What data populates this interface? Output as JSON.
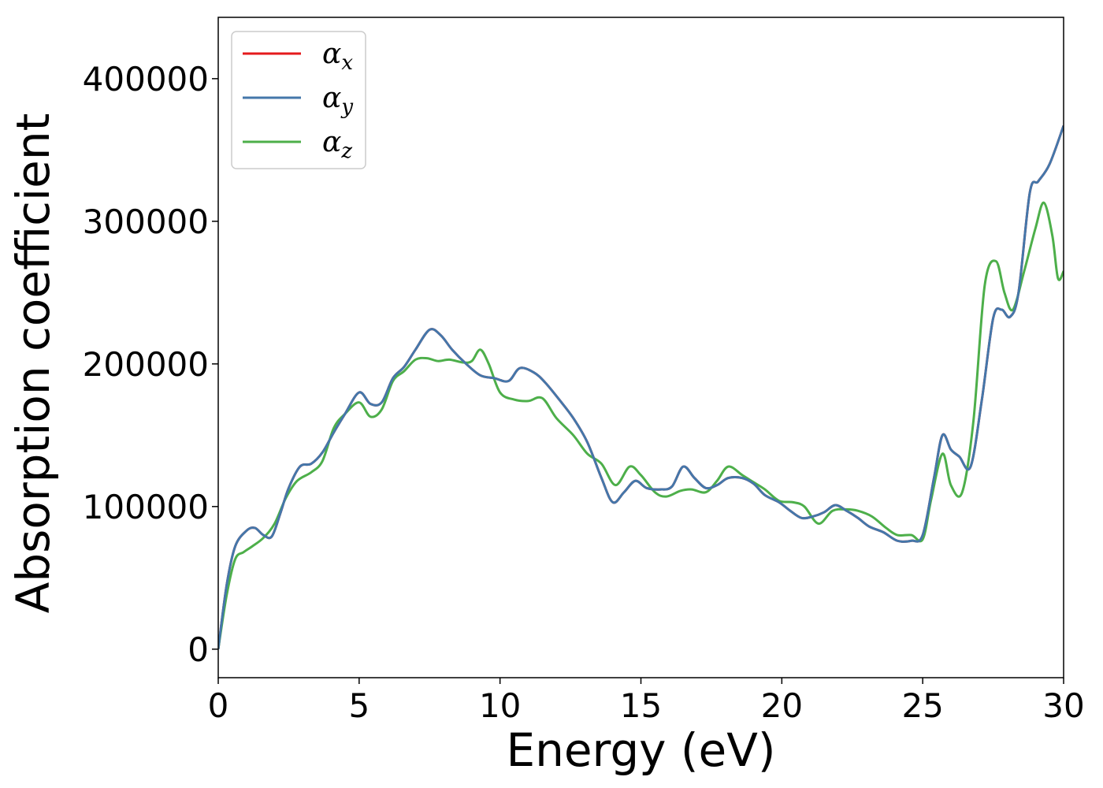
{
  "chart_data": {
    "type": "line",
    "title": "",
    "xlabel": "Energy (eV)",
    "ylabel": "Absorption coefficient",
    "xlim": [
      0,
      30
    ],
    "ylim": [
      -20000,
      443000
    ],
    "xticks": [
      0,
      5,
      10,
      15,
      20,
      25,
      30
    ],
    "yticks": [
      0,
      100000,
      200000,
      300000,
      400000
    ],
    "xtick_labels": [
      "0",
      "5",
      "10",
      "15",
      "20",
      "25",
      "30"
    ],
    "ytick_labels": [
      "0",
      "100000",
      "200000",
      "300000",
      "400000"
    ],
    "grid": false,
    "legend_position": "upper-left",
    "series": [
      {
        "name": "α",
        "subscript": "x",
        "color": "#e41a1c",
        "x": [
          0,
          0.3,
          0.6,
          1.0,
          1.3,
          1.6,
          1.9,
          2.2,
          2.5,
          2.9,
          3.3,
          3.7,
          4.1,
          4.5,
          5.0,
          5.4,
          5.8,
          6.2,
          6.6,
          7.0,
          7.5,
          7.9,
          8.3,
          8.8,
          9.3,
          9.8,
          10.3,
          10.7,
          11.2,
          11.6,
          12.1,
          12.6,
          13.1,
          13.6,
          14.0,
          14.4,
          14.8,
          15.2,
          15.7,
          16.1,
          16.5,
          16.9,
          17.3,
          17.7,
          18.1,
          18.6,
          19.0,
          19.4,
          19.9,
          20.3,
          20.7,
          21.1,
          21.5,
          21.9,
          22.3,
          22.7,
          23.1,
          23.6,
          24.1,
          24.6,
          25.0,
          25.4,
          25.7,
          26.0,
          26.3,
          26.7,
          27.1,
          27.5,
          27.8,
          28.1,
          28.4,
          28.8,
          29.1,
          29.5,
          30.0
        ],
        "values": [
          0,
          45000,
          72000,
          83000,
          85000,
          80000,
          79000,
          95000,
          113000,
          128000,
          130000,
          138000,
          152000,
          165000,
          180000,
          172000,
          173000,
          190000,
          198000,
          210000,
          224000,
          220000,
          210000,
          200000,
          192000,
          190000,
          188000,
          197000,
          194000,
          187000,
          175000,
          162000,
          145000,
          120000,
          103000,
          110000,
          118000,
          113000,
          112000,
          114000,
          128000,
          120000,
          113000,
          115000,
          120000,
          120000,
          116000,
          108000,
          103000,
          97000,
          92000,
          93000,
          96000,
          101000,
          97000,
          92000,
          86000,
          82000,
          76000,
          76000,
          80000,
          120000,
          150000,
          140000,
          135000,
          128000,
          175000,
          232000,
          238000,
          233000,
          250000,
          320000,
          328000,
          340000,
          367000
        ]
      },
      {
        "name": "α",
        "subscript": "y",
        "color": "#4477aa",
        "x": [
          0,
          0.3,
          0.6,
          1.0,
          1.3,
          1.6,
          1.9,
          2.2,
          2.5,
          2.9,
          3.3,
          3.7,
          4.1,
          4.5,
          5.0,
          5.4,
          5.8,
          6.2,
          6.6,
          7.0,
          7.5,
          7.9,
          8.3,
          8.8,
          9.3,
          9.8,
          10.3,
          10.7,
          11.2,
          11.6,
          12.1,
          12.6,
          13.1,
          13.6,
          14.0,
          14.4,
          14.8,
          15.2,
          15.7,
          16.1,
          16.5,
          16.9,
          17.3,
          17.7,
          18.1,
          18.6,
          19.0,
          19.4,
          19.9,
          20.3,
          20.7,
          21.1,
          21.5,
          21.9,
          22.3,
          22.7,
          23.1,
          23.6,
          24.1,
          24.6,
          25.0,
          25.4,
          25.7,
          26.0,
          26.3,
          26.7,
          27.1,
          27.5,
          27.8,
          28.1,
          28.4,
          28.8,
          29.1,
          29.5,
          30.0
        ],
        "values": [
          0,
          45000,
          72000,
          83000,
          85000,
          80000,
          79000,
          95000,
          113000,
          128000,
          130000,
          138000,
          152000,
          165000,
          180000,
          172000,
          173000,
          190000,
          198000,
          210000,
          224000,
          220000,
          210000,
          200000,
          192000,
          190000,
          188000,
          197000,
          194000,
          187000,
          175000,
          162000,
          145000,
          120000,
          103000,
          110000,
          118000,
          113000,
          112000,
          114000,
          128000,
          120000,
          113000,
          115000,
          120000,
          120000,
          116000,
          108000,
          103000,
          97000,
          92000,
          93000,
          96000,
          101000,
          97000,
          92000,
          86000,
          82000,
          76000,
          76000,
          80000,
          120000,
          150000,
          140000,
          135000,
          128000,
          175000,
          232000,
          238000,
          233000,
          250000,
          320000,
          328000,
          340000,
          367000
        ]
      },
      {
        "name": "α",
        "subscript": "z",
        "color": "#4daf4a",
        "x": [
          0,
          0.3,
          0.6,
          0.9,
          1.2,
          1.6,
          2.0,
          2.4,
          2.8,
          3.3,
          3.7,
          4.1,
          4.5,
          5.0,
          5.4,
          5.8,
          6.2,
          6.6,
          7.0,
          7.4,
          7.8,
          8.2,
          8.7,
          9.0,
          9.3,
          9.6,
          10.0,
          10.5,
          11.0,
          11.5,
          12.0,
          12.6,
          13.1,
          13.6,
          14.1,
          14.6,
          15.0,
          15.5,
          15.9,
          16.4,
          16.8,
          17.3,
          17.7,
          18.1,
          18.6,
          19.0,
          19.4,
          19.9,
          20.4,
          20.8,
          21.3,
          21.8,
          22.3,
          22.7,
          23.2,
          23.7,
          24.1,
          24.6,
          25.0,
          25.3,
          25.7,
          26.0,
          26.4,
          26.8,
          27.2,
          27.6,
          27.9,
          28.2,
          28.6,
          29.0,
          29.3,
          29.6,
          29.8,
          30.0
        ],
        "values": [
          0,
          38000,
          63000,
          68000,
          72000,
          78000,
          88000,
          106000,
          118000,
          124000,
          132000,
          155000,
          165000,
          173000,
          163000,
          168000,
          188000,
          195000,
          203000,
          204000,
          202000,
          203000,
          201000,
          202000,
          210000,
          200000,
          180000,
          175000,
          174000,
          176000,
          162000,
          150000,
          137000,
          130000,
          115000,
          128000,
          122000,
          110000,
          107000,
          111000,
          112000,
          110000,
          118000,
          128000,
          122000,
          117000,
          112000,
          104000,
          103000,
          100000,
          88000,
          97000,
          98000,
          97000,
          93000,
          85000,
          80000,
          80000,
          77000,
          105000,
          137000,
          115000,
          110000,
          160000,
          255000,
          272000,
          250000,
          238000,
          265000,
          295000,
          313000,
          290000,
          260000,
          265000
        ]
      }
    ]
  }
}
